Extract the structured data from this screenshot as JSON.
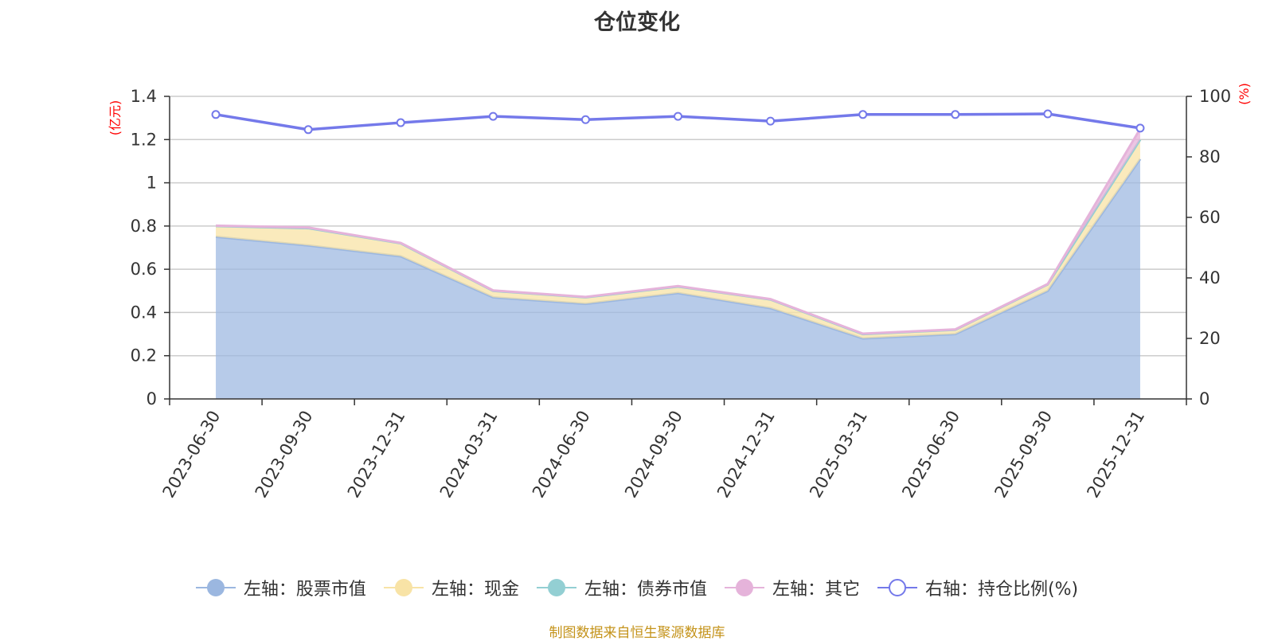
{
  "title": "仓位变化",
  "source": "制图数据来自恒生聚源数据库",
  "colors": {
    "stock": "#9bb7e0",
    "cash": "#f8e3a6",
    "bond": "#93cfd3",
    "other": "#e5b3da",
    "ratio": "#7479ea"
  },
  "legend": [
    {
      "label": "左轴：股票市值",
      "color": "#9bb7e0",
      "hollow": false
    },
    {
      "label": "左轴：现金",
      "color": "#f8e3a6",
      "hollow": false
    },
    {
      "label": "左轴：债券市值",
      "color": "#93cfd3",
      "hollow": false
    },
    {
      "label": "左轴：其它",
      "color": "#e5b3da",
      "hollow": false
    },
    {
      "label": "右轴：持仓比例(%)",
      "color": "#7479ea",
      "hollow": true
    }
  ],
  "chart_data": {
    "type": "area",
    "stacked": true,
    "title": "仓位变化",
    "categories": [
      "2023-06-30",
      "2023-09-30",
      "2023-12-31",
      "2024-03-31",
      "2024-06-30",
      "2024-09-30",
      "2024-12-31",
      "2025-03-31",
      "2025-06-30",
      "2025-09-30",
      "2025-12-31"
    ],
    "y_left": {
      "label": "(亿元)",
      "range": [
        0,
        1.4
      ],
      "ticks": [
        "0",
        "0.2",
        "0.4",
        "0.6",
        "0.8",
        "1",
        "1.2",
        "1.4"
      ]
    },
    "y_right": {
      "label": "(%)",
      "range": [
        0,
        100
      ],
      "ticks": [
        "0",
        "20",
        "40",
        "60",
        "80",
        "100"
      ]
    },
    "series": [
      {
        "name": "左轴：股票市值",
        "axis": "left",
        "type": "area",
        "values": [
          0.75,
          0.71,
          0.66,
          0.47,
          0.44,
          0.49,
          0.42,
          0.28,
          0.3,
          0.5,
          1.11
        ]
      },
      {
        "name": "左轴：现金",
        "axis": "left",
        "type": "area",
        "values": [
          0.05,
          0.08,
          0.06,
          0.03,
          0.03,
          0.03,
          0.04,
          0.02,
          0.02,
          0.03,
          0.09
        ]
      },
      {
        "name": "左轴：债券市值",
        "axis": "left",
        "type": "area",
        "values": [
          0,
          0,
          0,
          0,
          0,
          0,
          0,
          0,
          0,
          0,
          0
        ]
      },
      {
        "name": "左轴：其它",
        "axis": "left",
        "type": "area",
        "values": [
          0.002,
          0.003,
          0.002,
          0.002,
          0.002,
          0.002,
          0.002,
          0.002,
          0.002,
          0.002,
          0.05
        ]
      },
      {
        "name": "右轴：持仓比例(%)",
        "axis": "right",
        "type": "line",
        "values": [
          94,
          89,
          91.3,
          93.4,
          92.3,
          93.4,
          91.8,
          94,
          94,
          94.2,
          89.5
        ]
      }
    ],
    "grid": true,
    "legend_position": "bottom"
  }
}
